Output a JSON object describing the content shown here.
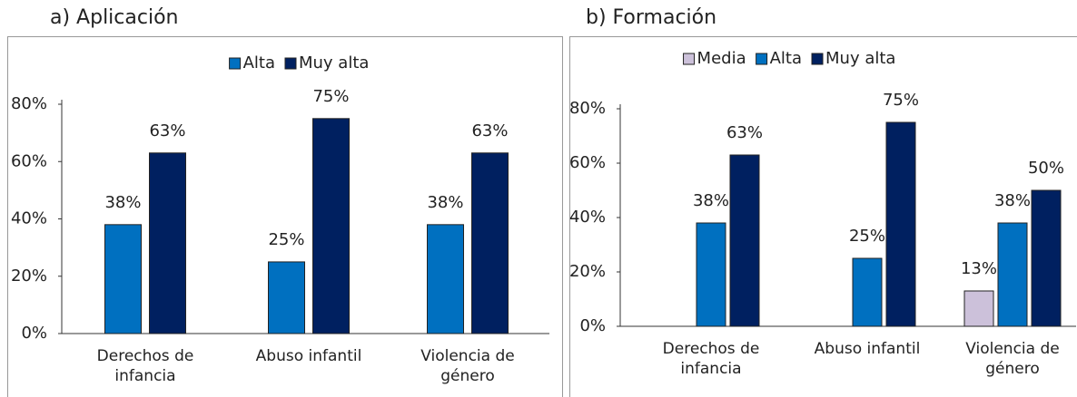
{
  "chart_data": [
    {
      "type": "bar",
      "title": "a)   Aplicación",
      "categories": [
        "Derechos de infancia",
        "Abuso infantil",
        "Violencia de género"
      ],
      "series": [
        {
          "name": "Alta",
          "color": "#0070c0",
          "values": [
            38,
            25,
            38
          ],
          "value_labels": [
            "38%",
            "25%",
            "38%"
          ]
        },
        {
          "name": "Muy alta",
          "color": "#002060",
          "values": [
            63,
            75,
            63
          ],
          "value_labels": [
            "63%",
            "75%",
            "63%"
          ]
        }
      ],
      "ylim": [
        0,
        80
      ],
      "yticks": [
        {
          "value": 0,
          "label": "0%"
        },
        {
          "value": 20,
          "label": "20%"
        },
        {
          "value": 40,
          "label": "40%"
        },
        {
          "value": 60,
          "label": "60%"
        },
        {
          "value": 80,
          "label": "80%"
        }
      ],
      "grid": false,
      "legend": "top"
    },
    {
      "type": "bar",
      "title": "b) Formación",
      "categories": [
        "Derechos de infancia",
        "Abuso infantil",
        "Violencia de género"
      ],
      "series": [
        {
          "name": "Media",
          "color": "#ccc1da",
          "values": [
            null,
            null,
            13
          ],
          "value_labels": [
            null,
            null,
            "13%"
          ]
        },
        {
          "name": "Alta",
          "color": "#0070c0",
          "values": [
            38,
            25,
            38
          ],
          "value_labels": [
            "38%",
            "25%",
            "38%"
          ]
        },
        {
          "name": "Muy alta",
          "color": "#002060",
          "values": [
            63,
            75,
            50
          ],
          "value_labels": [
            "63%",
            "75%",
            "50%"
          ]
        }
      ],
      "ylim": [
        0,
        80
      ],
      "yticks": [
        {
          "value": 0,
          "label": "0%"
        },
        {
          "value": 20,
          "label": "20%"
        },
        {
          "value": 40,
          "label": "40%"
        },
        {
          "value": 60,
          "label": "60%"
        },
        {
          "value": 80,
          "label": "80%"
        }
      ],
      "grid": false,
      "legend": "top"
    }
  ]
}
